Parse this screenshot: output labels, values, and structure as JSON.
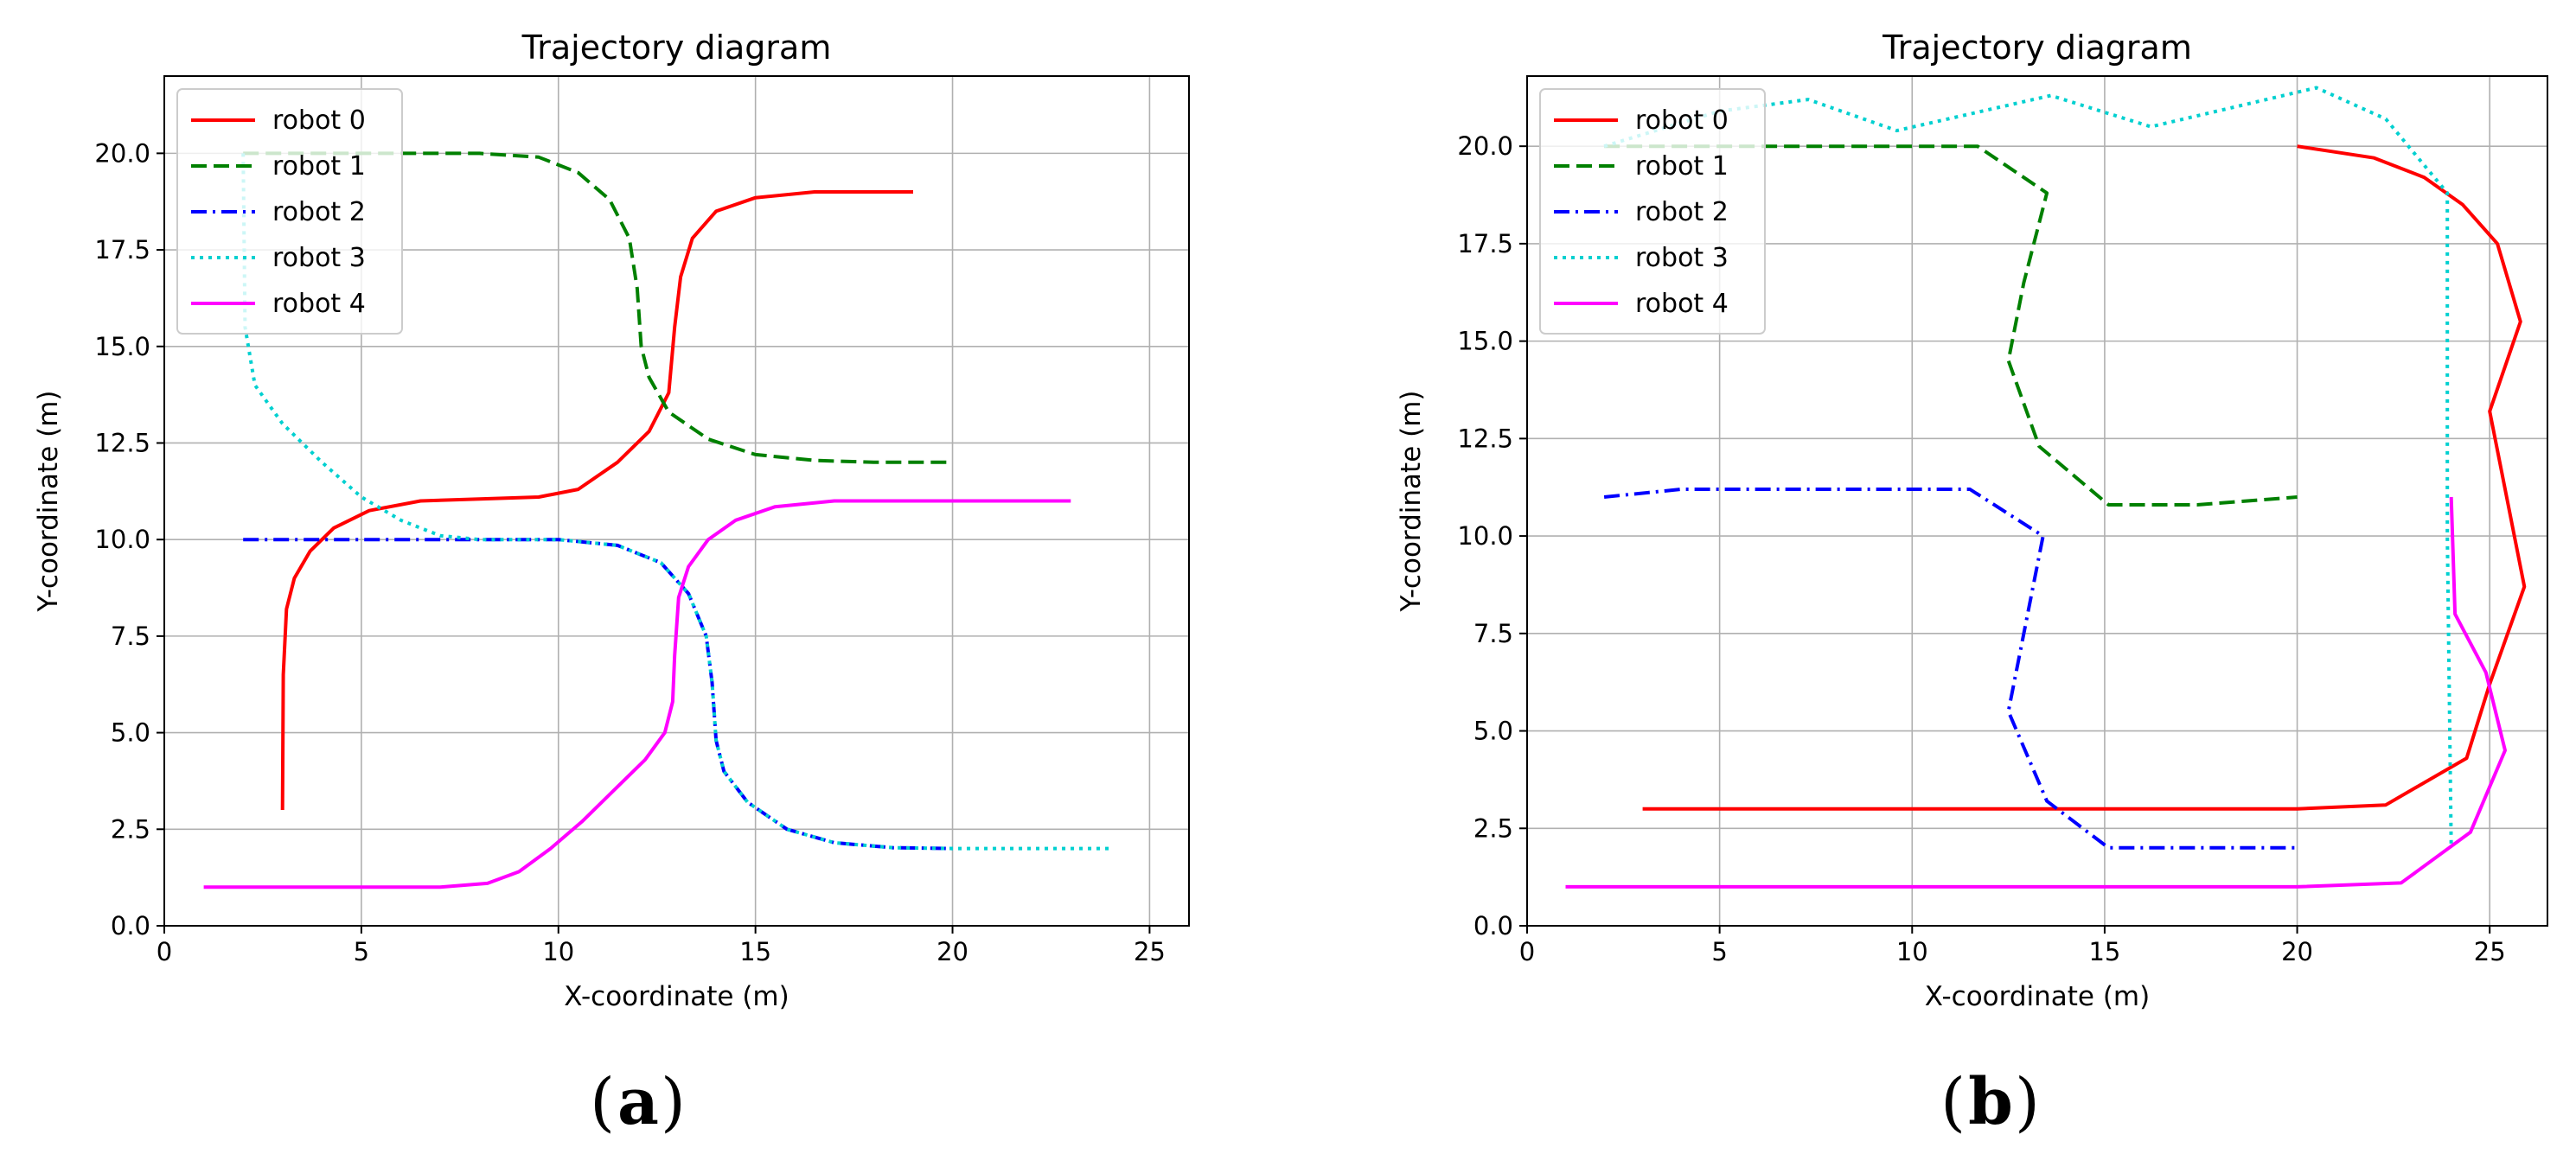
{
  "chart_data": [
    {
      "type": "line",
      "panel": "a",
      "caption_letter": "a",
      "title": "Trajectory diagram",
      "xlabel": "X-coordinate (m)",
      "ylabel": "Y-coordinate (m)",
      "xlim": [
        0,
        26
      ],
      "ylim": [
        0,
        22
      ],
      "xticks": [
        0,
        5,
        10,
        15,
        20,
        25
      ],
      "yticks": [
        0.0,
        2.5,
        5.0,
        7.5,
        10.0,
        12.5,
        15.0,
        17.5,
        20.0
      ],
      "xtick_labels": [
        "0",
        "5",
        "10",
        "15",
        "20",
        "25"
      ],
      "ytick_labels": [
        "0.0",
        "2.5",
        "5.0",
        "7.5",
        "10.0",
        "12.5",
        "15.0",
        "17.5",
        "20.0"
      ],
      "grid": true,
      "legend_position": "top-left",
      "series": [
        {
          "name": "robot 0",
          "color": "#ff0000",
          "style": "solid",
          "x": [
            3,
            3.02,
            3.1,
            3.3,
            3.7,
            4.3,
            5.2,
            6.5,
            8,
            9.5,
            10.5,
            11.5,
            12.3,
            12.8,
            12.95,
            13.1,
            13.4,
            14,
            15,
            16.5,
            19
          ],
          "y": [
            3,
            6.5,
            8.2,
            9.0,
            9.7,
            10.3,
            10.75,
            11.0,
            11.05,
            11.1,
            11.3,
            12.0,
            12.8,
            13.8,
            15.5,
            16.8,
            17.8,
            18.5,
            18.85,
            19.0,
            19.0
          ]
        },
        {
          "name": "robot 1",
          "color": "#008000",
          "style": "dashed",
          "x": [
            2,
            5,
            8,
            9.5,
            10.5,
            11.3,
            11.8,
            12.0,
            12.1,
            12.3,
            12.8,
            13.8,
            15,
            16.5,
            18,
            20
          ],
          "y": [
            20,
            20,
            20,
            19.9,
            19.5,
            18.8,
            17.8,
            16.5,
            15.0,
            14.2,
            13.3,
            12.6,
            12.2,
            12.05,
            12.0,
            12.0
          ]
        },
        {
          "name": "robot 2",
          "color": "#0000ff",
          "style": "dashdot",
          "x": [
            2,
            5,
            8,
            10,
            11.5,
            12.6,
            13.3,
            13.75,
            13.9,
            14.0,
            14.2,
            14.8,
            15.8,
            17,
            18.5,
            20
          ],
          "y": [
            10,
            10,
            10,
            10,
            9.85,
            9.4,
            8.6,
            7.5,
            6.3,
            4.8,
            4.0,
            3.2,
            2.5,
            2.15,
            2.02,
            2.0
          ]
        },
        {
          "name": "robot 3",
          "color": "#00d0d0",
          "style": "dotted",
          "x": [
            2,
            2.05,
            2.3,
            3.0,
            4.0,
            5.0,
            6.0,
            7.0,
            8.0,
            10,
            11.5,
            12.6,
            13.3,
            13.75,
            13.9,
            14.0,
            14.2,
            14.8,
            15.8,
            17,
            18.5,
            20,
            22,
            24
          ],
          "y": [
            20,
            15.5,
            14.0,
            13.0,
            12.0,
            11.1,
            10.5,
            10.1,
            10.0,
            10.0,
            9.85,
            9.4,
            8.6,
            7.5,
            6.3,
            4.8,
            4.0,
            3.2,
            2.5,
            2.15,
            2.02,
            2.0,
            2.0,
            2.0
          ]
        },
        {
          "name": "robot 4",
          "color": "#ff00ff",
          "style": "solid",
          "x": [
            1,
            4,
            7,
            8.2,
            9.0,
            9.8,
            10.6,
            11.4,
            12.2,
            12.7,
            12.9,
            12.95,
            13.05,
            13.3,
            13.8,
            14.5,
            15.5,
            17,
            19,
            21,
            23
          ],
          "y": [
            1,
            1,
            1,
            1.1,
            1.4,
            2.0,
            2.7,
            3.5,
            4.3,
            5.0,
            5.8,
            7.0,
            8.5,
            9.3,
            10.0,
            10.5,
            10.85,
            11.0,
            11.0,
            11.0,
            11.0
          ]
        }
      ]
    },
    {
      "type": "line",
      "panel": "b",
      "caption_letter": "b",
      "title": "Trajectory diagram",
      "xlabel": "X-coordinate (m)",
      "ylabel": "Y-coordinate (m)",
      "xlim": [
        0,
        26.5
      ],
      "ylim": [
        0,
        21.8
      ],
      "xticks": [
        0,
        5,
        10,
        15,
        20,
        25
      ],
      "yticks": [
        0.0,
        2.5,
        5.0,
        7.5,
        10.0,
        12.5,
        15.0,
        17.5,
        20.0
      ],
      "xtick_labels": [
        "0",
        "5",
        "10",
        "15",
        "20",
        "25"
      ],
      "ytick_labels": [
        "0.0",
        "2.5",
        "5.0",
        "7.5",
        "10.0",
        "12.5",
        "15.0",
        "17.5",
        "20.0"
      ],
      "grid": true,
      "legend_position": "top-left",
      "series": [
        {
          "name": "robot 0",
          "color": "#ff0000",
          "style": "solid",
          "x": [
            20,
            22,
            23.3,
            24.3,
            25.2,
            25.8,
            25.0,
            25.9,
            25.0,
            24.4,
            22.3,
            20,
            10,
            3
          ],
          "y": [
            20,
            19.7,
            19.2,
            18.5,
            17.5,
            15.5,
            13.2,
            8.7,
            6.2,
            4.3,
            3.1,
            3.0,
            3.0,
            3.0
          ]
        },
        {
          "name": "robot 1",
          "color": "#008000",
          "style": "dashed",
          "x": [
            2,
            5,
            8,
            11.7,
            13.5,
            12.9,
            12.5,
            13.3,
            15.1,
            17.4,
            20
          ],
          "y": [
            20,
            20,
            20,
            20,
            18.8,
            16.5,
            14.5,
            12.3,
            10.8,
            10.8,
            11.0
          ]
        },
        {
          "name": "robot 2",
          "color": "#0000ff",
          "style": "dashdot",
          "x": [
            2,
            4,
            6,
            11.5,
            13.4,
            12.5,
            13.5,
            15.1,
            17.5,
            20
          ],
          "y": [
            11,
            11.2,
            11.2,
            11.2,
            10.0,
            5.5,
            3.2,
            2.0,
            2.0,
            2.0
          ]
        },
        {
          "name": "robot 3",
          "color": "#00d0d0",
          "style": "dotted",
          "x": [
            2,
            5,
            7.3,
            9.6,
            13.6,
            16.2,
            20.5,
            22.3,
            23.9,
            23.9,
            24.0
          ],
          "y": [
            20,
            20.9,
            21.2,
            20.4,
            21.3,
            20.5,
            21.5,
            20.7,
            18.8,
            10.0,
            2.0
          ]
        },
        {
          "name": "robot 4",
          "color": "#ff00ff",
          "style": "solid",
          "x": [
            24,
            24.1,
            24.9,
            25.4,
            24.5,
            22.7,
            20,
            10,
            1
          ],
          "y": [
            11,
            8.0,
            6.5,
            4.5,
            2.4,
            1.1,
            1.0,
            1.0,
            1.0
          ]
        }
      ]
    }
  ]
}
